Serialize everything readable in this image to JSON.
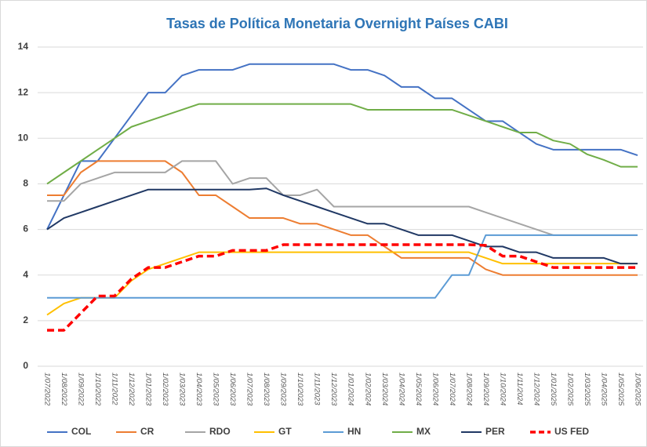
{
  "chart_data": {
    "type": "line",
    "title": "Tasas de Política Monetaria Overnight Países CABI",
    "categories": [
      "1/07/2022",
      "1/08/2022",
      "1/09/2022",
      "1/10/2022",
      "1/11/2022",
      "1/12/2022",
      "1/01/2023",
      "1/02/2023",
      "1/03/2023",
      "1/04/2023",
      "1/05/2023",
      "1/06/2023",
      "1/07/2023",
      "1/08/2023",
      "1/09/2023",
      "1/10/2023",
      "1/11/2023",
      "1/12/2023",
      "1/01/2024",
      "1/02/2024",
      "1/03/2024",
      "1/04/2024",
      "1/05/2024",
      "1/06/2024",
      "1/07/2024",
      "1/08/2024",
      "1/09/2024",
      "1/10/2024",
      "1/11/2024",
      "1/12/2024",
      "1/01/2025",
      "1/02/2025",
      "1/03/2025",
      "1/04/2025",
      "1/05/2025",
      "1/06/2025"
    ],
    "series": [
      {
        "name": "COL",
        "color": "#4472c4",
        "values": [
          6,
          7.5,
          9,
          9,
          10,
          11,
          12,
          12,
          12.75,
          13,
          13,
          13,
          13.25,
          13.25,
          13.25,
          13.25,
          13.25,
          13.25,
          13,
          13,
          12.75,
          12.25,
          12.25,
          11.75,
          11.75,
          11.25,
          10.75,
          10.75,
          10.25,
          9.75,
          9.5,
          9.5,
          9.5,
          9.5,
          9.5,
          9.25
        ]
      },
      {
        "name": "CR",
        "color": "#ed7d31",
        "values": [
          7.5,
          7.5,
          8.5,
          9,
          9,
          9,
          9,
          9,
          8.5,
          7.5,
          7.5,
          7,
          6.5,
          6.5,
          6.5,
          6.25,
          6.25,
          6,
          5.75,
          5.75,
          5.25,
          4.75,
          4.75,
          4.75,
          4.75,
          4.75,
          4.25,
          4,
          4,
          4,
          4,
          4,
          4,
          4,
          4,
          4
        ]
      },
      {
        "name": "RDO",
        "color": "#a5a5a5",
        "values": [
          7.25,
          7.25,
          8,
          8.25,
          8.5,
          8.5,
          8.5,
          8.5,
          9,
          9,
          9,
          8,
          8.25,
          8.25,
          7.5,
          7.5,
          7.75,
          7,
          7,
          7,
          7,
          7,
          7,
          7,
          7,
          7,
          6.75,
          6.5,
          6.25,
          6,
          5.75,
          5.75,
          5.75,
          5.75,
          5.75,
          5.75
        ]
      },
      {
        "name": "GT",
        "color": "#ffc000",
        "values": [
          2.25,
          2.75,
          3,
          3,
          3,
          3.75,
          4.25,
          4.5,
          4.75,
          5,
          5,
          5,
          5,
          5,
          5,
          5,
          5,
          5,
          5,
          5,
          5,
          5,
          5,
          5,
          5,
          5,
          4.75,
          4.5,
          4.5,
          4.5,
          4.5,
          4.5,
          4.5,
          4.5,
          4.5,
          4.5
        ]
      },
      {
        "name": "HN",
        "color": "#5b9bd5",
        "values": [
          3,
          3,
          3,
          3,
          3,
          3,
          3,
          3,
          3,
          3,
          3,
          3,
          3,
          3,
          3,
          3,
          3,
          3,
          3,
          3,
          3,
          3,
          3,
          3,
          4,
          4,
          5.75,
          5.75,
          5.75,
          5.75,
          5.75,
          5.75,
          5.75,
          5.75,
          5.75,
          5.75
        ]
      },
      {
        "name": "MX",
        "color": "#70ad47",
        "values": [
          8,
          8.5,
          9,
          9.5,
          10,
          10.5,
          10.75,
          11,
          11.25,
          11.5,
          11.5,
          11.5,
          11.5,
          11.5,
          11.5,
          11.5,
          11.5,
          11.5,
          11.5,
          11.25,
          11.25,
          11.25,
          11.25,
          11.25,
          11.25,
          11,
          10.75,
          10.5,
          10.25,
          10.25,
          9.9,
          9.75,
          9.3,
          9.05,
          8.75,
          8.75
        ]
      },
      {
        "name": "PER",
        "color": "#203864",
        "values": [
          6,
          6.5,
          6.75,
          7,
          7.25,
          7.5,
          7.75,
          7.75,
          7.75,
          7.75,
          7.75,
          7.75,
          7.75,
          7.8,
          7.5,
          7.25,
          7,
          6.75,
          6.5,
          6.25,
          6.25,
          6,
          5.75,
          5.75,
          5.75,
          5.5,
          5.25,
          5.25,
          5,
          5,
          4.75,
          4.75,
          4.75,
          4.75,
          4.5,
          4.5
        ]
      },
      {
        "name": "US FED",
        "color": "#ff0000",
        "dashed": true,
        "values": [
          1.58,
          1.58,
          2.33,
          3.08,
          3.08,
          3.83,
          4.33,
          4.33,
          4.58,
          4.83,
          4.83,
          5.08,
          5.08,
          5.08,
          5.33,
          5.33,
          5.33,
          5.33,
          5.33,
          5.33,
          5.33,
          5.33,
          5.33,
          5.33,
          5.33,
          5.33,
          5.3,
          4.83,
          4.83,
          4.58,
          4.33,
          4.33,
          4.33,
          4.33,
          4.33,
          4.33
        ]
      }
    ],
    "ylim": [
      0,
      14
    ],
    "yticks": [
      0,
      2,
      4,
      6,
      8,
      10,
      12,
      14
    ],
    "grid": true,
    "legend": "bottom"
  }
}
